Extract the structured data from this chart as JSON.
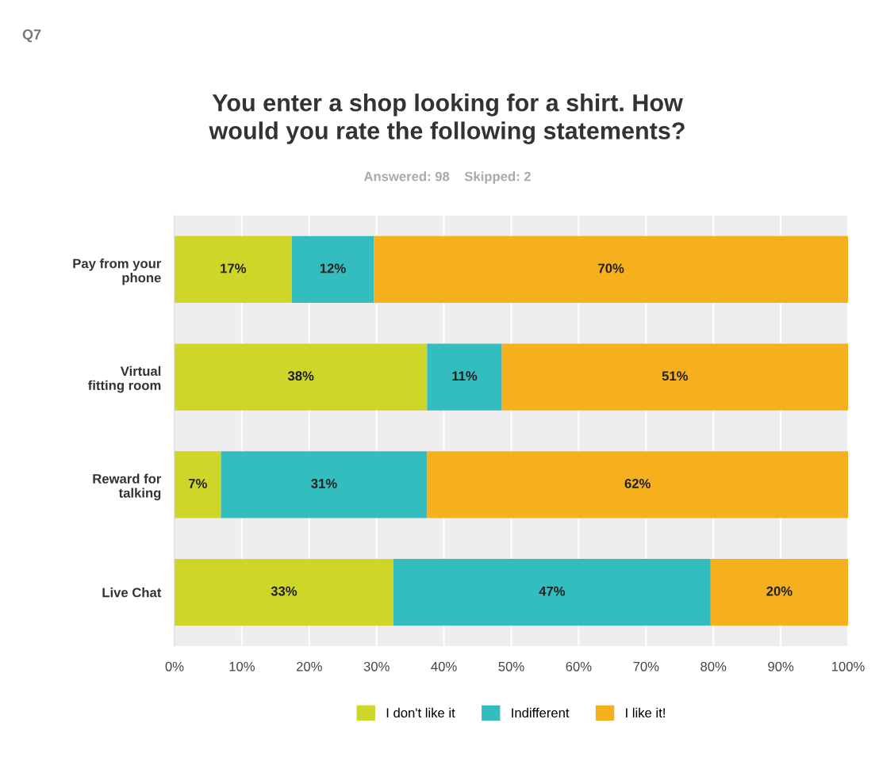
{
  "chart_data": {
    "type": "bar",
    "orientation": "horizontal",
    "stacked": true,
    "title": "You enter a shop looking for a shirt. How\nwould you rate the following statements?",
    "subtitle": "Answered: 98    Skipped: 2",
    "annotations": [
      "Q7"
    ],
    "categories": [
      "Pay from your\nphone",
      "Virtual\nfitting room",
      "Reward for\ntalking",
      "Live Chat"
    ],
    "series": [
      {
        "name": "I don't like it",
        "color": "#cdd629",
        "values": [
          17.4,
          37.5,
          6.9,
          32.5
        ],
        "value_labels": [
          "17%",
          "38%",
          "7%",
          "33%"
        ]
      },
      {
        "name": "Indifferent",
        "color": "#33bdbf",
        "values": [
          12.2,
          11.1,
          30.6,
          47.1
        ],
        "value_labels": [
          "12%",
          "11%",
          "31%",
          "47%"
        ]
      },
      {
        "name": "I like it!",
        "color": "#f6b01e",
        "values": [
          70.4,
          51.4,
          62.5,
          20.4
        ],
        "value_labels": [
          "70%",
          "51%",
          "62%",
          "20%"
        ]
      }
    ],
    "xlim": [
      0,
      100
    ],
    "xticks": [
      {
        "value": 0,
        "label": "0%"
      },
      {
        "value": 10,
        "label": "10%"
      },
      {
        "value": 20,
        "label": "20%"
      },
      {
        "value": 30,
        "label": "30%"
      },
      {
        "value": 40,
        "label": "40%"
      },
      {
        "value": 50,
        "label": "50%"
      },
      {
        "value": 60,
        "label": "60%"
      },
      {
        "value": 70,
        "label": "70%"
      },
      {
        "value": 80,
        "label": "80%"
      },
      {
        "value": 90,
        "label": "90%"
      },
      {
        "value": 100,
        "label": "100%"
      }
    ],
    "grid": "x",
    "legend": "bottom"
  }
}
